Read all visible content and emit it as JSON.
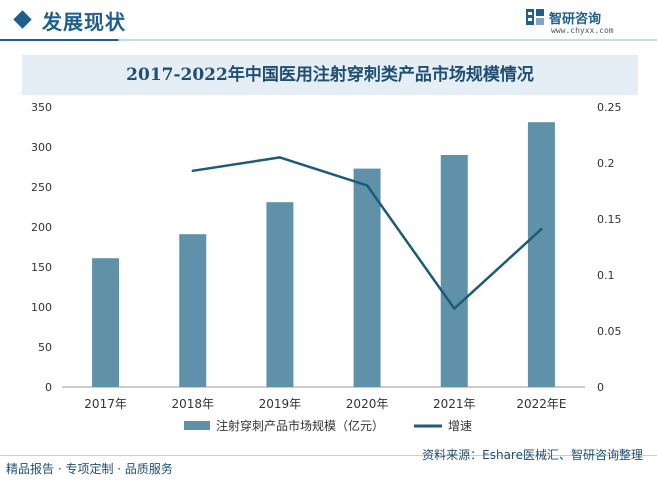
{
  "header": {
    "section_title": "发展现状",
    "logo_name": "智研咨询",
    "logo_url": "www.chyxx.com"
  },
  "colors": {
    "bar": "#5f92a9",
    "line": "#1c5b79",
    "brand": "#1f5f8b"
  },
  "chart_data": {
    "type": "bar",
    "title": "2017-2022年中国医用注射穿刺类产品市场规模情况",
    "categories": [
      "2017年",
      "2018年",
      "2019年",
      "2020年",
      "2021年",
      "2022年E"
    ],
    "series": [
      {
        "name": "注射穿刺产品市场规模（亿元）",
        "type": "bar",
        "axis": "left",
        "values": [
          161,
          191,
          231,
          273,
          290,
          331
        ]
      },
      {
        "name": "增速",
        "type": "line",
        "axis": "right",
        "values": [
          null,
          0.193,
          0.205,
          0.18,
          0.07,
          0.141
        ]
      }
    ],
    "ylim_left": [
      0,
      350
    ],
    "yticks_left": [
      "0",
      "50",
      "100",
      "150",
      "200",
      "250",
      "300",
      "350"
    ],
    "ylim_right": [
      0,
      0.25
    ],
    "yticks_right": [
      "0",
      "0.05",
      "0.1",
      "0.15",
      "0.2",
      "0.25"
    ],
    "legend": "bottom",
    "grid": false
  },
  "footer": {
    "left": "精品报告 · 专项定制 · 品质服务",
    "source": "资料来源：Eshare医械汇、智研咨询整理"
  }
}
